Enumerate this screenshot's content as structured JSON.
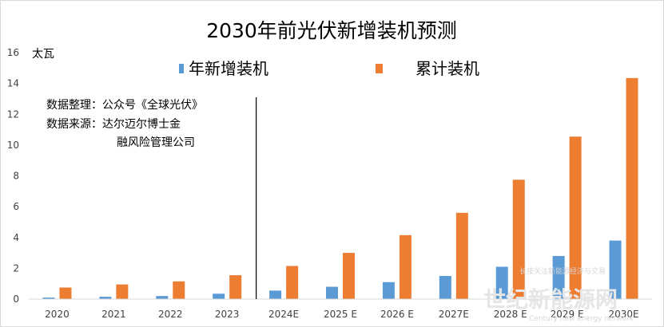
{
  "chart_data": {
    "type": "bar",
    "title": "2030年前光伏新增装机预测",
    "ylabel": "太瓦",
    "xlabel": "",
    "ylim": [
      0,
      16
    ],
    "yticks": [
      0,
      2,
      4,
      6,
      8,
      10,
      12,
      14,
      16
    ],
    "grid": false,
    "legend_placement": "top",
    "categories": [
      "2020",
      "2021",
      "2022",
      "2023",
      "2024E",
      "2025 E",
      "2026 E",
      "2027E",
      "2028 E",
      "2029 E",
      "2030E"
    ],
    "series": [
      {
        "name": "年新增装机",
        "color": "#5b9bd5",
        "values": [
          0.1,
          0.15,
          0.2,
          0.35,
          0.55,
          0.8,
          1.1,
          1.5,
          2.1,
          2.8,
          3.8
        ]
      },
      {
        "name": "累计装机",
        "color": "#ed7d31",
        "values": [
          0.75,
          0.95,
          1.15,
          1.55,
          2.15,
          3.0,
          4.15,
          5.6,
          7.75,
          10.55,
          14.35
        ]
      }
    ],
    "annotations": {
      "note_lines": [
        "数据整理：公众号《全球光伏》",
        "数据来源：达尔迈尔博士金",
        "融风险管理公司"
      ],
      "divider_after_category": "2023"
    }
  },
  "watermark": {
    "banner": "长按关注新能源经济与交易",
    "main": "世纪新能源网",
    "sub": "Century new energy network"
  }
}
